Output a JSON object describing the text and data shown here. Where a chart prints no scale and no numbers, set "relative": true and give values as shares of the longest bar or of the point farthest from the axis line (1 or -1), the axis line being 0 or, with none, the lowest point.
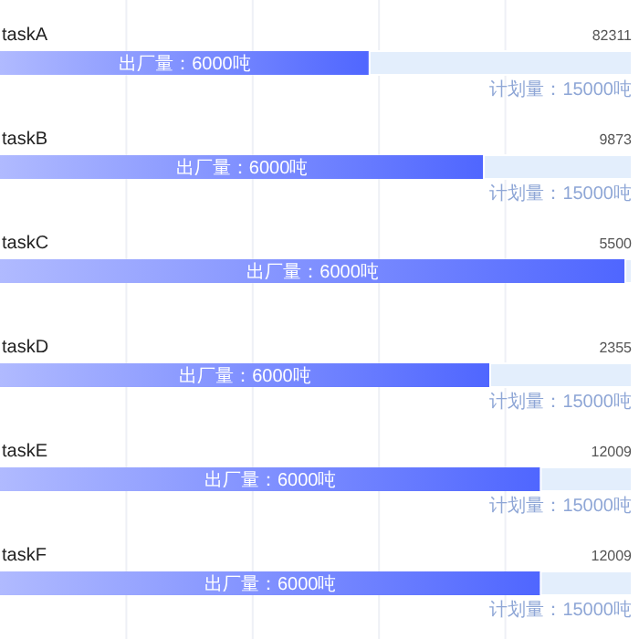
{
  "chart_data": {
    "type": "bar",
    "orientation": "horizontal",
    "stacked": true,
    "relative": true,
    "grid": "x",
    "categories": [
      "taskA",
      "taskB",
      "taskC",
      "taskD",
      "taskE",
      "taskF"
    ],
    "series": [
      {
        "color": "#4f66ff",
        "values": [
          0.585,
          0.766,
          0.99,
          0.776,
          0.856,
          0.856
        ]
      },
      {
        "color": "#e3eefc",
        "values": [
          0.415,
          0.234,
          0.01,
          0.224,
          0.144,
          0.144
        ]
      }
    ],
    "annotations": [
      {
        "text": "82311",
        "y": "taskA"
      },
      {
        "text": "9873",
        "y": "taskB"
      },
      {
        "text": "5500",
        "y": "taskC"
      },
      {
        "text": "2355",
        "y": "taskD"
      },
      {
        "text": "12009",
        "y": "taskE"
      },
      {
        "text": "12009",
        "y": "taskF"
      },
      {
        "text": "出厂量：6000吨",
        "x": 0.2925,
        "y": "taskA"
      },
      {
        "text": "出厂量：6000吨",
        "x": 0.383,
        "y": "taskB"
      },
      {
        "text": "出厂量：6000吨",
        "x": 0.495,
        "y": "taskC"
      },
      {
        "text": "出厂量：6000吨",
        "x": 0.388,
        "y": "taskD"
      },
      {
        "text": "出厂量：6000吨",
        "x": 0.428,
        "y": "taskE"
      },
      {
        "text": "出厂量：6000吨",
        "x": 0.428,
        "y": "taskF"
      },
      {
        "text": "计划量：15000吨",
        "x": 1,
        "y": "taskA"
      },
      {
        "text": "计划量：15000吨",
        "x": 1,
        "y": "taskB"
      },
      {
        "text": "计划量：15000吨",
        "x": 1,
        "y": "taskD"
      },
      {
        "text": "计划量：15000吨",
        "x": 1,
        "y": "taskE"
      },
      {
        "text": "计划量：15000吨",
        "x": 1,
        "y": "taskF"
      }
    ]
  }
}
